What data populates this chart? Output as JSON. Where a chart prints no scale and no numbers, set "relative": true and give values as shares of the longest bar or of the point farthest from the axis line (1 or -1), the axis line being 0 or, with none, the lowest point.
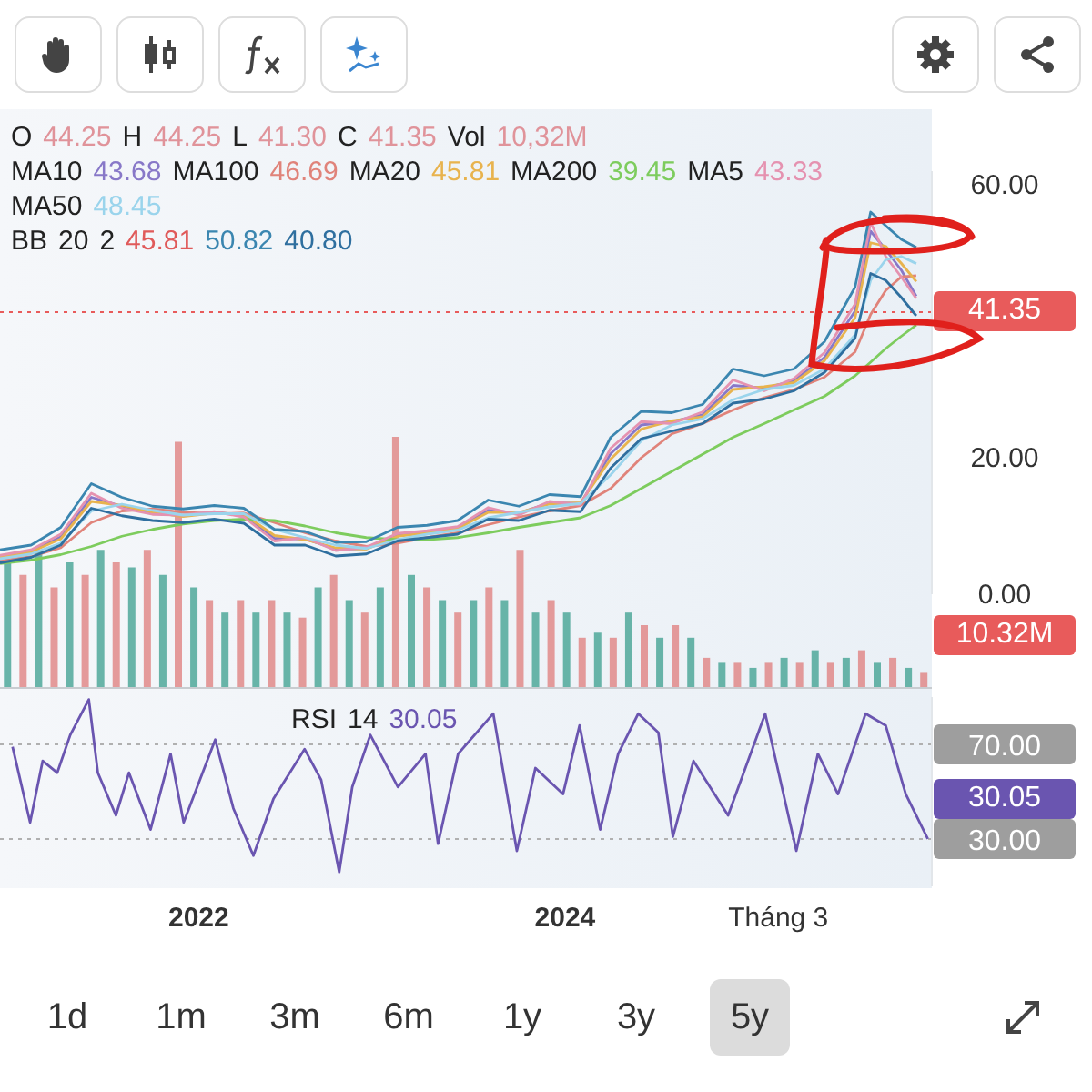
{
  "chart_data": [
    {
      "type": "line",
      "tick_labels": "y",
      "annotations": [
        "O 44.25 H 44.25 L 41.30 C 41.35 Vol 10,32M",
        "MA10 43.68 MA100 46.69 MA20 45.81 MA200 39.45 MA5 43.33 MA50 48.45",
        "BB 20 2 45.81 50.82 40.80"
      ],
      "x": [
        "2020-12",
        "2021-02",
        "2021-04",
        "2021-06",
        "2021-08",
        "2021-10",
        "2021-12",
        "2022-02",
        "2022-04",
        "2022-06",
        "2022-08",
        "2022-10",
        "2022-12",
        "2023-02",
        "2023-04",
        "2023-06",
        "2023-08",
        "2023-10",
        "2023-12",
        "2024-02",
        "2024-04",
        "2024-06",
        "2024-08",
        "2024-10",
        "2024-12",
        "2025-02",
        "2025-04",
        "2025-06",
        "2025-08",
        "2025-09",
        "2025-10",
        "2025-11",
        "2025-12"
      ],
      "xlim": [
        "2020-12-01",
        "2026-01-01"
      ],
      "ylim": [
        0,
        62
      ],
      "yticks": [
        {
          "value": 0,
          "label": "0.00"
        },
        {
          "value": 20,
          "label": "20.00"
        },
        {
          "value": 60,
          "label": "60.00"
        }
      ],
      "ref_lines": [
        {
          "axis": "y",
          "value": 41.35,
          "label": "41.35",
          "color": "#e85b5b",
          "line_style": "dotted"
        }
      ],
      "series": [
        {
          "color": "#8878c8",
          "values": [
            5.5,
            6.3,
            8.4,
            14.2,
            12.9,
            11.9,
            11.5,
            12,
            11.6,
            8.2,
            8.1,
            6.6,
            6.7,
            8.7,
            9.1,
            9.7,
            12.3,
            11.9,
            13.4,
            13.3,
            20.6,
            24.8,
            25.3,
            26.3,
            30.6,
            30.2,
            31.3,
            34.7,
            41.5,
            53.2,
            50.5,
            47.5,
            43.68
          ]
        },
        {
          "color": "#e0837a",
          "values": [
            4.9,
            5.5,
            6.8,
            10.5,
            12.2,
            12.5,
            12,
            11.8,
            11.9,
            10.5,
            9,
            7.8,
            7,
            7.5,
            8.3,
            9,
            10.2,
            11.3,
            12.2,
            13,
            15.5,
            20,
            23.5,
            25,
            27,
            28.8,
            30,
            31.8,
            35.5,
            41,
            44.5,
            46.5,
            46.69
          ]
        },
        {
          "color": "#e8b34e",
          "values": [
            5.4,
            6.2,
            8.1,
            13.6,
            13,
            12,
            11.4,
            11.9,
            11.7,
            8.6,
            8,
            6.8,
            6.6,
            8.5,
            9,
            9.6,
            12,
            12,
            13.2,
            13.4,
            19.8,
            24.2,
            25.4,
            26,
            30,
            30.4,
            31,
            34.2,
            40.5,
            51.5,
            51,
            48.5,
            45.81
          ]
        },
        {
          "color": "#7dcc5d",
          "values": [
            4.5,
            5,
            5.8,
            7,
            8.5,
            9.5,
            10.3,
            10.8,
            11,
            10.8,
            10,
            9,
            8.3,
            8,
            8,
            8.3,
            9,
            9.8,
            10.5,
            11.2,
            13,
            15.5,
            18,
            20.5,
            23,
            25,
            27,
            29,
            32,
            34,
            36,
            37.8,
            39.45
          ]
        },
        {
          "color": "#e592b0",
          "values": [
            5.7,
            6.5,
            8.8,
            14.8,
            12.6,
            11.7,
            11.6,
            12.1,
            11.3,
            7.8,
            8.3,
            6.4,
            6.9,
            8.9,
            9.3,
            9.9,
            12.7,
            11.6,
            13.6,
            13.1,
            21.4,
            25.3,
            25,
            26.7,
            31.4,
            29.8,
            31.6,
            35.4,
            42.5,
            54.5,
            49.5,
            46.5,
            43.33
          ]
        },
        {
          "color": "#9ad4ec",
          "values": [
            5.2,
            5.9,
            7.5,
            12.2,
            13.2,
            12.3,
            11.6,
            11.8,
            11.8,
            9.5,
            8.3,
            7.2,
            6.7,
            8,
            8.8,
            9.4,
            11.2,
            12,
            12.8,
            13.3,
            17.5,
            22.5,
            24.8,
            25.7,
            28.5,
            30,
            30.6,
            33,
            38,
            46,
            49,
            49.5,
            48.45
          ]
        },
        {
          "color": "#3b86b0",
          "values": [
            6.5,
            7.2,
            9.8,
            16.2,
            14.2,
            12.9,
            12.5,
            13,
            12.6,
            9.5,
            9.2,
            7.6,
            7.7,
            9.8,
            10.1,
            10.8,
            13.8,
            12.9,
            14.6,
            14.3,
            23,
            26.8,
            26.6,
            27.8,
            33,
            32,
            33,
            37,
            45,
            56,
            54,
            52,
            50.82
          ]
        },
        {
          "color": "#2f6f9f",
          "values": [
            4.6,
            5.4,
            7.2,
            12.6,
            11.5,
            10.8,
            10.5,
            11,
            10.4,
            7.2,
            7.2,
            5.6,
            5.9,
            7.8,
            8.3,
            8.8,
            11,
            10.8,
            12.3,
            12.1,
            18.5,
            22.8,
            23.9,
            25,
            28,
            28.6,
            29.8,
            32.5,
            37.5,
            47,
            46,
            43.5,
            40.8
          ]
        }
      ]
    },
    {
      "type": "bar",
      "relative": true,
      "tick_labels": false,
      "annotations": [
        "10.32M"
      ],
      "categories": [
        null,
        null,
        null,
        null,
        null,
        null,
        null,
        null,
        null,
        null,
        null,
        null,
        null,
        null,
        null,
        null,
        null,
        null,
        null,
        null,
        null,
        null,
        null,
        null,
        null,
        null,
        null,
        null,
        null,
        null,
        null,
        null,
        null,
        null,
        null,
        null,
        null,
        null,
        null,
        null,
        null,
        null,
        null,
        null,
        null,
        null,
        null,
        null,
        null,
        null,
        null,
        null,
        null,
        null,
        null,
        null,
        null,
        null,
        null,
        null
      ],
      "values": [
        0.5,
        0.45,
        0.55,
        0.4,
        0.5,
        0.45,
        0.55,
        0.5,
        0.48,
        0.55,
        0.45,
        0.98,
        0.4,
        0.35,
        0.3,
        0.35,
        0.3,
        0.35,
        0.3,
        0.28,
        0.4,
        0.45,
        0.35,
        0.3,
        0.4,
        1,
        0.45,
        0.4,
        0.35,
        0.3,
        0.35,
        0.4,
        0.35,
        0.55,
        0.3,
        0.35,
        0.3,
        0.2,
        0.22,
        0.2,
        0.3,
        0.25,
        0.2,
        0.25,
        0.2,
        0.12,
        0.1,
        0.1,
        0.08,
        0.1,
        0.12,
        0.1,
        0.15,
        0.1,
        0.12,
        0.15,
        0.1,
        0.12,
        0.08,
        0.06
      ],
      "colors": [
        "#4fa89a",
        "#e08a8a",
        "#4fa89a",
        "#e08a8a",
        "#4fa89a",
        "#e08a8a",
        "#4fa89a",
        "#e08a8a",
        "#4fa89a",
        "#e08a8a",
        "#4fa89a",
        "#e08a8a",
        "#4fa89a",
        "#e08a8a",
        "#4fa89a",
        "#e08a8a",
        "#4fa89a",
        "#e08a8a",
        "#4fa89a",
        "#e08a8a",
        "#4fa89a",
        "#e08a8a",
        "#4fa89a",
        "#e08a8a",
        "#4fa89a",
        "#e08a8a",
        "#4fa89a",
        "#e08a8a",
        "#4fa89a",
        "#e08a8a",
        "#4fa89a",
        "#e08a8a",
        "#4fa89a",
        "#e08a8a",
        "#4fa89a",
        "#e08a8a",
        "#4fa89a",
        "#e08a8a",
        "#4fa89a",
        "#e08a8a",
        "#4fa89a",
        "#e08a8a",
        "#4fa89a",
        "#e08a8a",
        "#4fa89a",
        "#e08a8a",
        "#4fa89a",
        "#e08a8a",
        "#4fa89a",
        "#e08a8a",
        "#4fa89a",
        "#e08a8a",
        "#4fa89a",
        "#e08a8a",
        "#4fa89a",
        "#e08a8a",
        "#4fa89a",
        "#e08a8a",
        "#4fa89a",
        "#e08a8a"
      ]
    },
    {
      "type": "line",
      "xlim": [
        "2020-12-01",
        "2026-01-01"
      ],
      "ylim": [
        10,
        90
      ],
      "xticks": [
        "2022",
        "2024",
        {
          "value": "2025-03",
          "label": "Tháng 3"
        }
      ],
      "yticks": [
        {
          "value": 30,
          "label": "30.00"
        },
        {
          "value": 70,
          "label": "70.00"
        }
      ],
      "ref_lines": [
        {
          "axis": "y",
          "value": 70,
          "color": "#b0b0b0",
          "line_style": "dotted"
        },
        {
          "axis": "y",
          "value": 30,
          "color": "#b0b0b0",
          "line_style": "dotted"
        }
      ],
      "annotations": [
        "RSI 14 30.05",
        "30.05"
      ],
      "series": [
        {
          "color": "#6a55b0",
          "x": [
            "2020-12-26",
            "2021-01-30",
            "2021-02-24",
            "2021-03-25",
            "2021-04-20",
            "2021-05-27",
            "2021-06-14",
            "2021-07-20",
            "2021-08-15",
            "2021-09-27",
            "2021-11-06",
            "2021-12-02",
            "2022-02-03",
            "2022-03-11",
            "2022-04-20",
            "2022-05-30",
            "2022-07-31",
            "2022-09-02",
            "2022-10-08",
            "2022-11-03",
            "2022-12-09",
            "2023-02-02",
            "2023-03-29",
            "2023-04-23",
            "2023-06-02",
            "2023-08-11",
            "2023-09-27",
            "2023-11-03",
            "2023-12-28",
            "2024-01-30",
            "2024-03-11",
            "2024-04-16",
            "2024-05-26",
            "2024-07-05",
            "2024-08-03",
            "2024-09-13",
            "2024-11-21",
            "2025-02-03",
            "2025-04-06",
            "2025-05-19",
            "2025-06-28",
            "2025-08-22",
            "2025-10-01",
            "2025-11-10",
            "2025-12-24"
          ],
          "values": [
            69,
            37,
            63,
            58,
            74,
            89,
            58,
            40,
            58,
            34,
            66,
            37,
            72,
            43,
            23,
            47,
            68,
            55,
            16,
            52,
            74,
            52,
            66,
            28,
            66,
            83,
            25,
            60,
            49,
            78,
            34,
            66,
            83,
            75,
            31,
            63,
            40,
            83,
            25,
            66,
            49,
            83,
            78,
            49,
            30.05
          ]
        }
      ]
    },
    {
      "type": "other",
      "annotations": [
        "1d",
        "1m",
        "3m",
        "6m",
        "1y",
        "3y",
        "5y"
      ]
    }
  ]
}
